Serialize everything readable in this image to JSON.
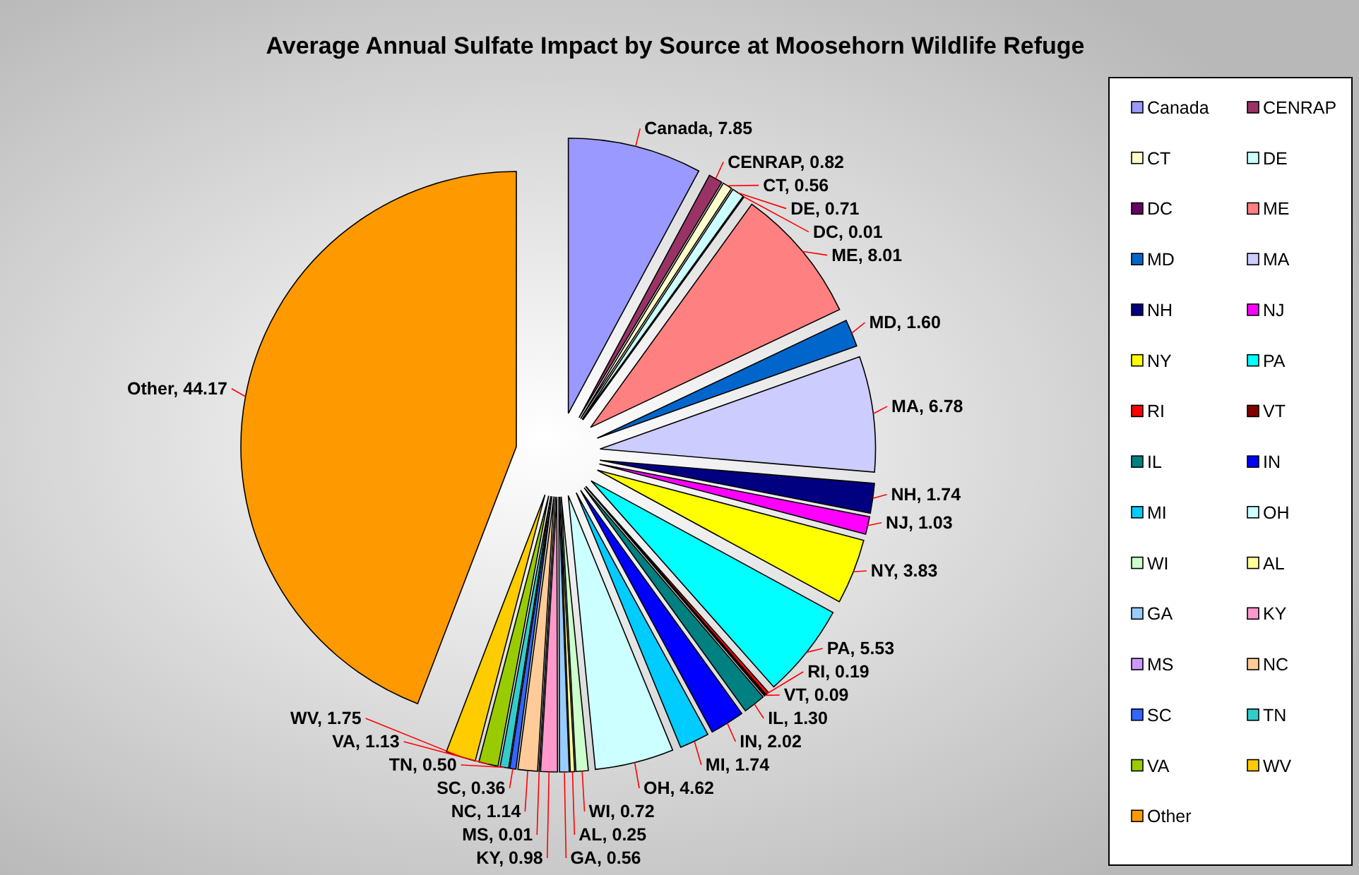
{
  "chart_data": {
    "type": "pie",
    "title": "Average Annual Sulfate Impact by Source at Moosehorn Wildlife Refuge",
    "categories": [
      "Canada",
      "CENRAP",
      "CT",
      "DE",
      "DC",
      "ME",
      "MD",
      "MA",
      "NH",
      "NJ",
      "NY",
      "PA",
      "RI",
      "VT",
      "IL",
      "IN",
      "MI",
      "OH",
      "WI",
      "AL",
      "GA",
      "KY",
      "MS",
      "NC",
      "SC",
      "TN",
      "VA",
      "WV",
      "Other"
    ],
    "values": [
      7.85,
      0.82,
      0.56,
      0.71,
      0.01,
      8.01,
      1.6,
      6.78,
      1.74,
      1.03,
      3.83,
      5.53,
      0.19,
      0.09,
      1.3,
      2.02,
      1.74,
      4.62,
      0.72,
      0.25,
      0.56,
      0.98,
      0.01,
      1.14,
      0.36,
      0.5,
      1.13,
      1.75,
      44.17
    ],
    "value_labels": [
      "Canada, 7.85",
      "CENRAP, 0.82",
      "CT, 0.56",
      "DE, 0.71",
      "DC, 0.01",
      "ME, 8.01",
      "MD, 1.60",
      "MA, 6.78",
      "NH, 1.74",
      "NJ, 1.03",
      "NY, 3.83",
      "PA, 5.53",
      "RI, 0.19",
      "VT, 0.09",
      "IL, 1.30",
      "IN, 2.02",
      "MI, 1.74",
      "OH, 4.62",
      "WI, 0.72",
      "AL, 0.25",
      "GA, 0.56",
      "KY, 0.98",
      "MS, 0.01",
      "NC, 1.14",
      "SC, 0.36",
      "TN, 0.50",
      "VA, 1.13",
      "WV, 1.75",
      "Other, 44.17"
    ],
    "colors": [
      "#9999ff",
      "#993366",
      "#ffffcc",
      "#ccffff",
      "#660066",
      "#ff8080",
      "#0066cc",
      "#ccccff",
      "#000080",
      "#ff00ff",
      "#ffff00",
      "#00ffff",
      "#ff0000",
      "#800000",
      "#008080",
      "#0000ff",
      "#00ccff",
      "#ccffff",
      "#ccffcc",
      "#ffff99",
      "#99ccff",
      "#ff99cc",
      "#cc99ff",
      "#ffcc99",
      "#3366ff",
      "#33cccc",
      "#99cc00",
      "#ffcc00",
      "#ff9900"
    ],
    "legend": "right"
  }
}
